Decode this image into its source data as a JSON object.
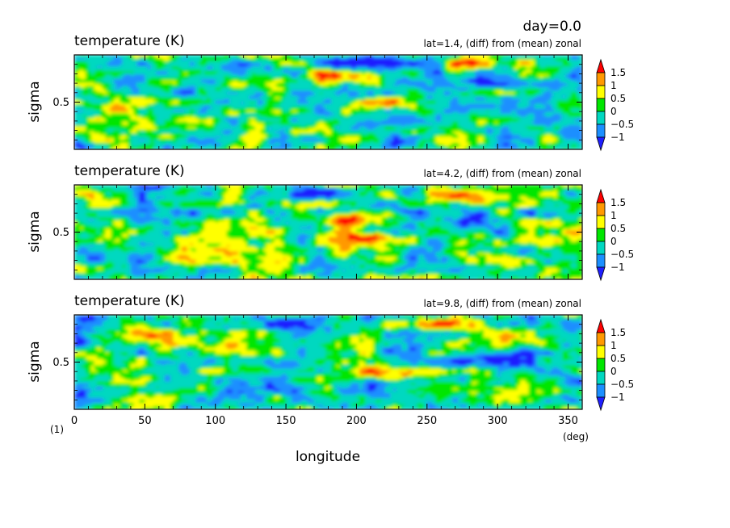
{
  "figure": {
    "day_label": "day=0.0",
    "panel_index": "(1)",
    "x_unit": "(deg)"
  },
  "chart_data": [
    {
      "type": "heatmap",
      "title": "temperature (K)",
      "subtitle": "lat=1.4, (diff) from (mean) zonal",
      "xlabel": "longitude",
      "ylabel": "sigma",
      "xlim": [
        0,
        360
      ],
      "ylim": [
        1.0,
        0.0
      ],
      "x_ticks": [
        0,
        50,
        100,
        150,
        200,
        250,
        300,
        350
      ],
      "y_ticks": [
        0.5
      ],
      "levels": [
        -1,
        -0.5,
        0,
        0.5,
        1,
        1.5
      ],
      "features": [
        {
          "lon": 280,
          "sigma": 0.09,
          "value": 1.7
        },
        {
          "lon": 185,
          "sigma": 0.22,
          "value": 1.6
        },
        {
          "lon": 210,
          "sigma": 0.52,
          "value": 0.9
        },
        {
          "lon": 200,
          "sigma": 0.08,
          "value": -1.3
        },
        {
          "lon": 125,
          "sigma": 0.18,
          "value": -0.9
        },
        {
          "lon": 315,
          "sigma": 0.48,
          "value": -1.0
        },
        {
          "lon": 20,
          "sigma": 0.55,
          "value": 0.8
        }
      ]
    },
    {
      "type": "heatmap",
      "title": "temperature (K)",
      "subtitle": "lat=4.2, (diff) from (mean) zonal",
      "xlabel": "longitude",
      "ylabel": "sigma",
      "xlim": [
        0,
        360
      ],
      "ylim": [
        1.0,
        0.0
      ],
      "x_ticks": [
        0,
        50,
        100,
        150,
        200,
        250,
        300,
        350
      ],
      "y_ticks": [
        0.5
      ],
      "levels": [
        -1,
        -0.5,
        0,
        0.5,
        1,
        1.5
      ],
      "features": [
        {
          "lon": 270,
          "sigma": 0.12,
          "value": 1.8
        },
        {
          "lon": 210,
          "sigma": 0.55,
          "value": 1.6
        },
        {
          "lon": 195,
          "sigma": 0.35,
          "value": 1.5
        },
        {
          "lon": 170,
          "sigma": 0.08,
          "value": -1.4
        },
        {
          "lon": 290,
          "sigma": 0.4,
          "value": -1.0
        },
        {
          "lon": 20,
          "sigma": 0.5,
          "value": 0.7
        }
      ]
    },
    {
      "type": "heatmap",
      "title": "temperature (K)",
      "subtitle": "lat=9.8, (diff) from (mean) zonal",
      "xlabel": "longitude",
      "ylabel": "sigma",
      "xlim": [
        0,
        360
      ],
      "ylim": [
        1.0,
        0.0
      ],
      "x_ticks": [
        0,
        50,
        100,
        150,
        200,
        250,
        300,
        350
      ],
      "y_ticks": [
        0.5
      ],
      "levels": [
        -1,
        -0.5,
        0,
        0.5,
        1,
        1.5
      ],
      "features": [
        {
          "lon": 220,
          "sigma": 0.62,
          "value": 1.6
        },
        {
          "lon": 260,
          "sigma": 0.1,
          "value": 1.6
        },
        {
          "lon": 50,
          "sigma": 0.22,
          "value": 1.5
        },
        {
          "lon": 160,
          "sigma": 0.1,
          "value": -1.1
        },
        {
          "lon": 125,
          "sigma": 0.7,
          "value": -0.9
        },
        {
          "lon": 300,
          "sigma": 0.48,
          "value": -0.8
        }
      ]
    }
  ],
  "colorbar": {
    "labels": [
      "1.5",
      "1",
      "0.5",
      "0",
      "−0.5",
      "−1"
    ],
    "colors": [
      "#1f1fff",
      "#1b8fff",
      "#00d8c0",
      "#00e600",
      "#ffff00",
      "#ff9900",
      "#ff0000"
    ]
  }
}
